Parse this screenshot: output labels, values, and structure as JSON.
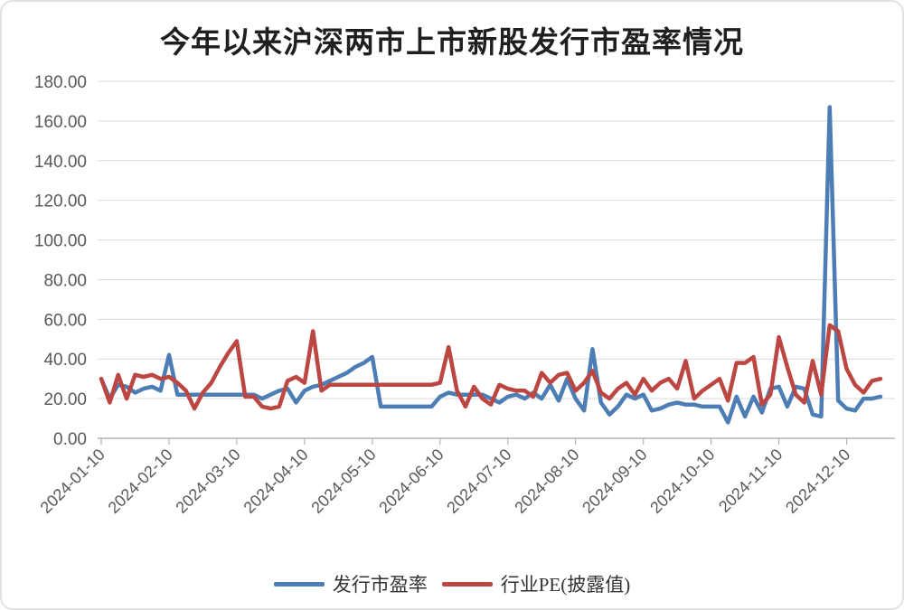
{
  "chart_data": {
    "type": "line",
    "title": "今年以来沪深两市上市新股发行市盈率情况",
    "xlabel": "",
    "ylabel": "",
    "ylim": [
      0,
      180
    ],
    "y_tick_step": 20,
    "y_tick_decimals": 2,
    "grid": true,
    "legend_position": "bottom",
    "x_tick_labels": [
      "2024-01-10",
      "2024-02-10",
      "2024-03-10",
      "2024-04-10",
      "2024-05-10",
      "2024-06-10",
      "2024-07-10",
      "2024-08-10",
      "2024-09-10",
      "2024-10-10",
      "2024-11-10",
      "2024-12-10"
    ],
    "x_tick_every": 8,
    "colors": {
      "grid": "#d9d9d9",
      "axis": "#b3b3b3"
    },
    "series": [
      {
        "name": "发行市盈率",
        "color": "#4d7db5",
        "values": [
          30,
          20,
          27,
          26,
          23,
          25,
          26,
          24,
          42,
          22,
          22,
          22,
          22,
          22,
          22,
          22,
          22,
          22,
          22,
          20,
          22,
          24,
          25,
          18,
          24,
          26,
          27,
          29,
          31,
          33,
          36,
          38,
          41,
          16,
          16,
          16,
          16,
          16,
          16,
          16,
          21,
          23,
          22,
          22,
          22,
          22,
          20,
          18,
          21,
          22,
          20,
          23,
          20,
          27,
          19,
          30,
          20,
          14,
          45,
          18,
          12,
          16,
          22,
          20,
          22,
          14,
          15,
          17,
          18,
          17,
          17,
          16,
          16,
          16,
          8,
          21,
          11,
          21,
          13,
          25,
          26,
          16,
          26,
          25,
          12,
          11,
          167,
          19,
          15,
          14,
          20,
          20,
          21
        ]
      },
      {
        "name": "行业PE(披露值)",
        "color": "#bc4642",
        "values": [
          30,
          18,
          32,
          20,
          32,
          31,
          32,
          30,
          31,
          28,
          24,
          15,
          23,
          28,
          36,
          43,
          49,
          21,
          21,
          16,
          15,
          16,
          29,
          31,
          28,
          54,
          24,
          27,
          27,
          27,
          27,
          27,
          27,
          27,
          27,
          27,
          27,
          27,
          27,
          27,
          28,
          46,
          24,
          16,
          26,
          20,
          17,
          27,
          25,
          24,
          24,
          21,
          33,
          28,
          32,
          33,
          24,
          28,
          34,
          23,
          20,
          25,
          28,
          22,
          30,
          24,
          28,
          30,
          25,
          39,
          20,
          24,
          27,
          30,
          19,
          38,
          38,
          41,
          17,
          22,
          51,
          36,
          22,
          18,
          39,
          22,
          57,
          54,
          35,
          27,
          23,
          29,
          30
        ]
      }
    ]
  }
}
